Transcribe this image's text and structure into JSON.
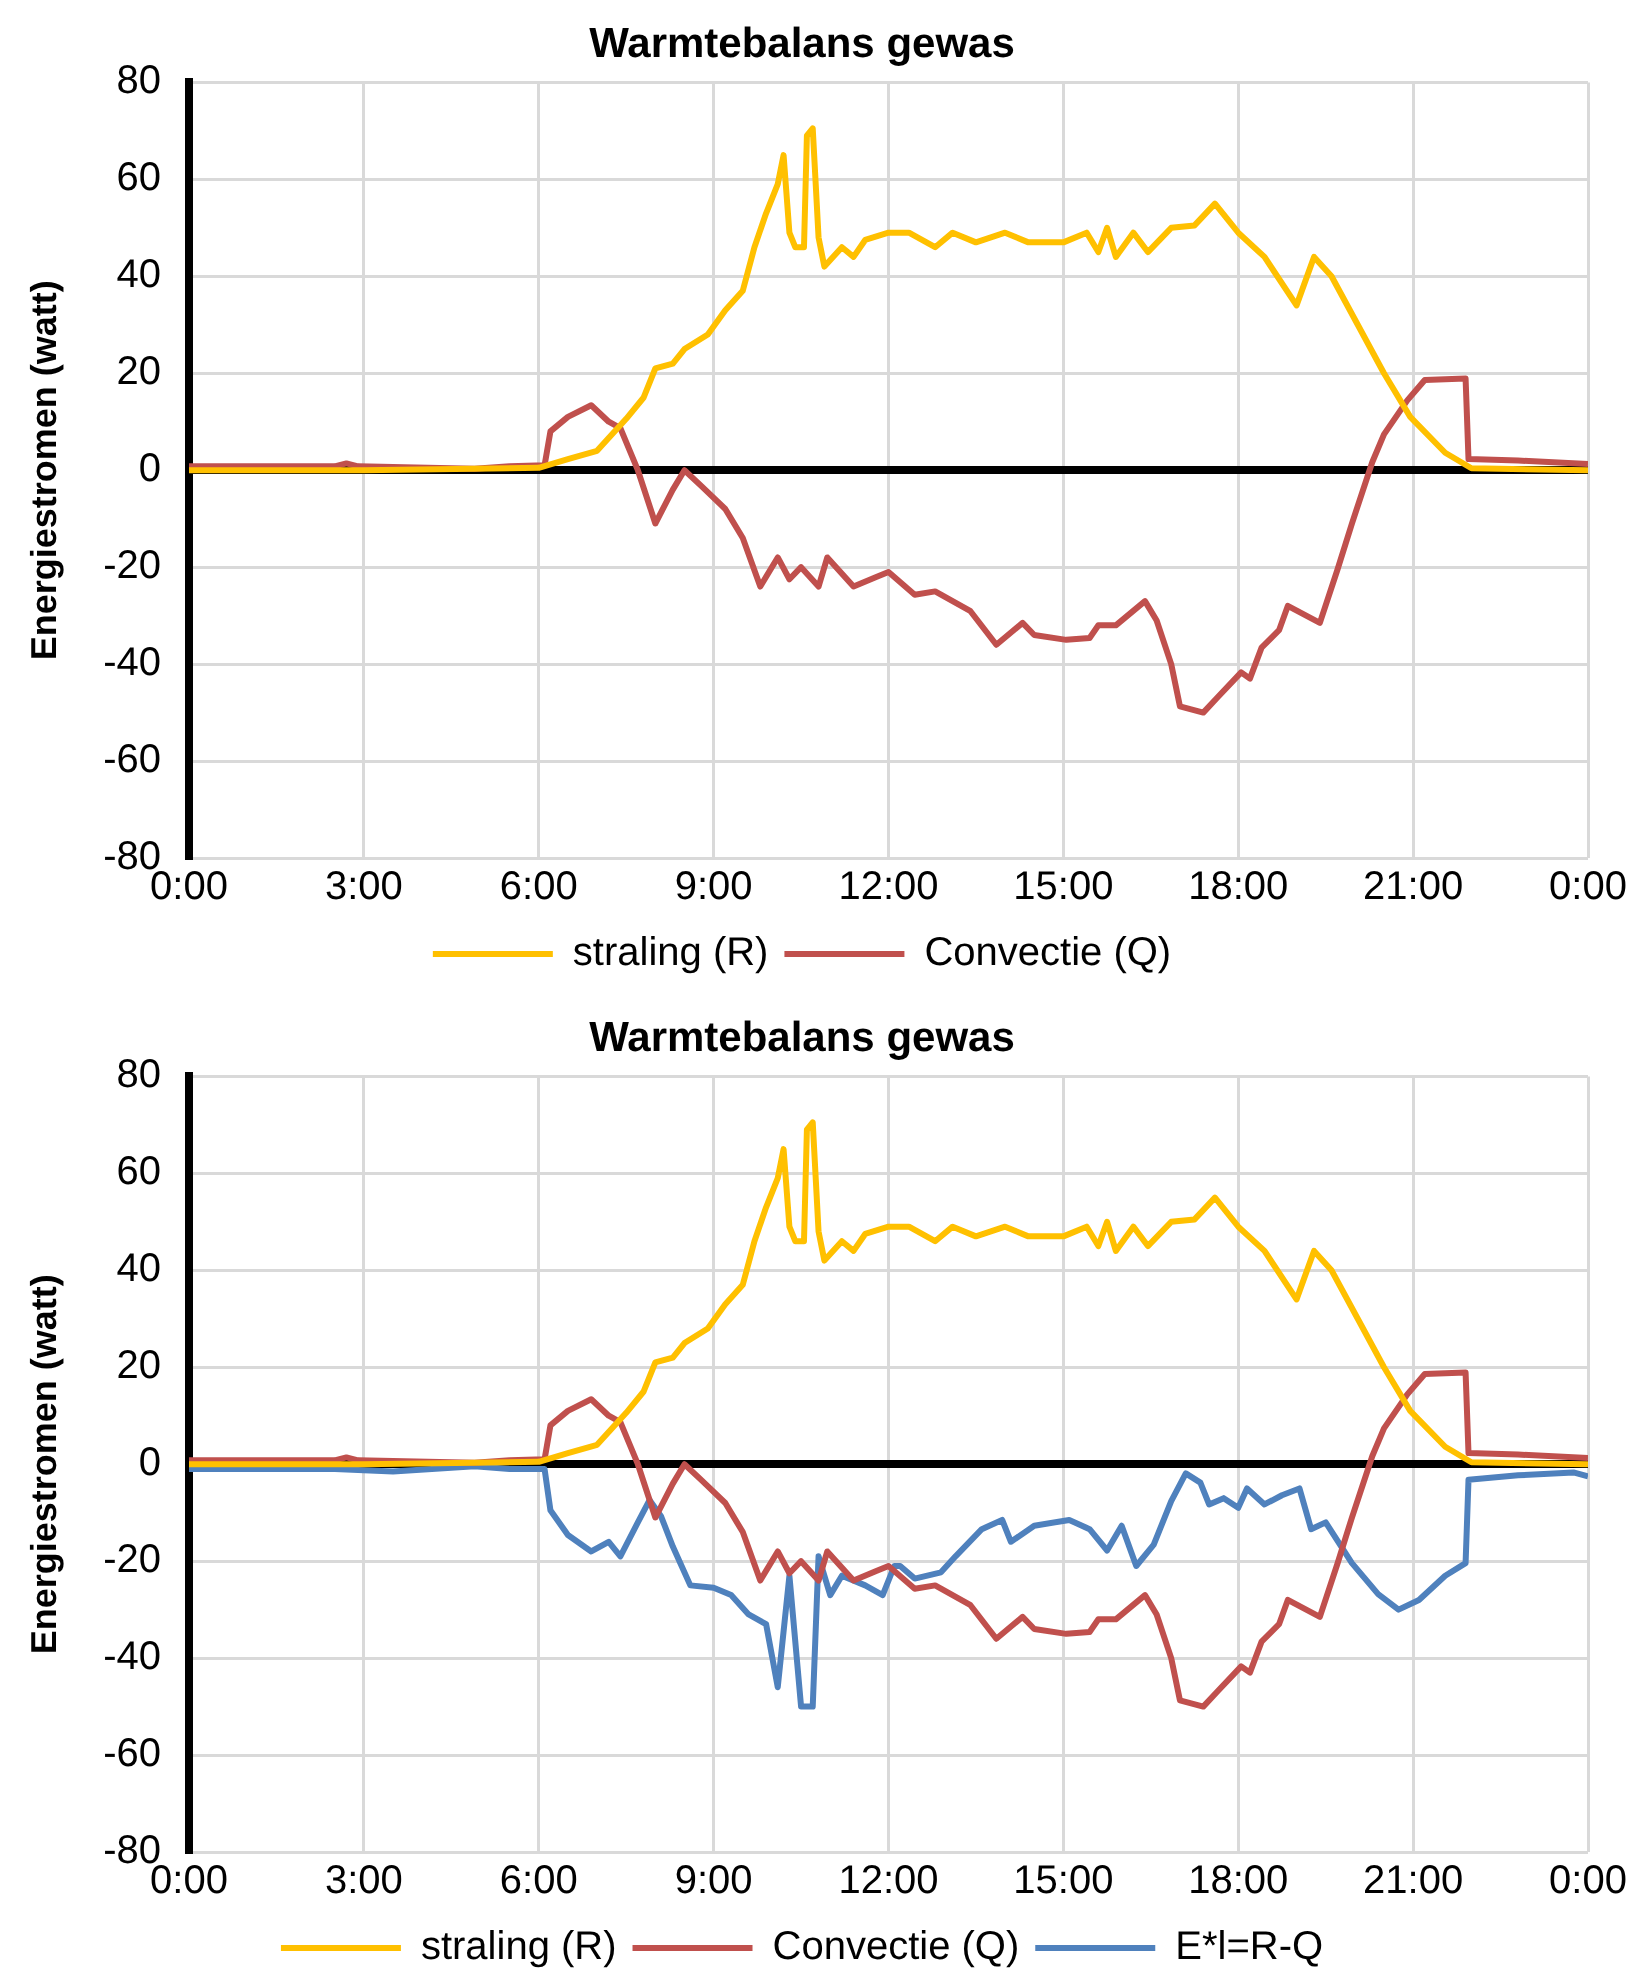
{
  "chart_data": [
    {
      "type": "line",
      "title": "Warmtebalans gewas",
      "ylabel": "Energiestromen (watt)",
      "xlim": [
        0,
        24
      ],
      "xticks": [
        {
          "value": 0,
          "label": "0:00"
        },
        {
          "value": 3,
          "label": "3:00"
        },
        {
          "value": 6,
          "label": "6:00"
        },
        {
          "value": 9,
          "label": "9:00"
        },
        {
          "value": 12,
          "label": "12:00"
        },
        {
          "value": 15,
          "label": "15:00"
        },
        {
          "value": 18,
          "label": "18:00"
        },
        {
          "value": 21,
          "label": "21:00"
        },
        {
          "value": 24,
          "label": "0:00"
        }
      ],
      "ylim": [
        -80,
        80
      ],
      "yticks": [
        -80,
        -60,
        -40,
        -20,
        0,
        20,
        40,
        60,
        80
      ],
      "grid": true,
      "legend": "bottom",
      "series": [
        {
          "name": "straling (R)",
          "color": "#ffc000",
          "x": [
            0,
            3,
            6,
            6.5,
            7,
            7.5,
            7.8,
            8,
            8.3,
            8.5,
            8.9,
            9.2,
            9.5,
            9.7,
            9.9,
            10.1,
            10.2,
            10.3,
            10.4,
            10.55,
            10.6,
            10.7,
            10.8,
            10.9,
            11.2,
            11.4,
            11.6,
            12,
            12.35,
            12.8,
            13.1,
            13.5,
            14,
            14.4,
            15,
            15.4,
            15.6,
            15.75,
            15.9,
            16.2,
            16.45,
            16.85,
            17.25,
            17.6,
            18,
            18.45,
            19,
            19.3,
            19.6,
            20.05,
            20.5,
            20.95,
            21.55,
            22,
            24
          ],
          "values": [
            0,
            0,
            0.5,
            2.3,
            4,
            10.6,
            15,
            21,
            22,
            25,
            28,
            33,
            37,
            46,
            53,
            59,
            65,
            49,
            46,
            46,
            69,
            70.5,
            48,
            42,
            46,
            44,
            47.5,
            49,
            49,
            46,
            49,
            47,
            49,
            47,
            47,
            49,
            45,
            50,
            44,
            49,
            45,
            50,
            50.5,
            55,
            49,
            44,
            34,
            44,
            40,
            30,
            20,
            11,
            3.6,
            0.4,
            0
          ]
        },
        {
          "name": "Convectie (Q)",
          "color": "#c0504d",
          "x": [
            0,
            2.5,
            2.7,
            2.9,
            4.9,
            5.5,
            6.1,
            6.2,
            6.5,
            6.9,
            7.2,
            7.4,
            7.7,
            8,
            8.3,
            8.5,
            8.8,
            9.2,
            9.5,
            9.8,
            10.1,
            10.3,
            10.5,
            10.8,
            10.95,
            11.4,
            11.8,
            12,
            12.45,
            12.8,
            13.4,
            13.85,
            14.3,
            14.5,
            15.05,
            15.45,
            15.6,
            15.9,
            16.4,
            16.6,
            16.85,
            17,
            17.4,
            17.65,
            18.05,
            18.2,
            18.4,
            18.7,
            18.85,
            19.4,
            19.7,
            19.95,
            20.3,
            20.5,
            20.9,
            21.2,
            21.9,
            21.95,
            22.8,
            24
          ],
          "values": [
            0.8,
            0.8,
            1.4,
            0.8,
            0.3,
            0.8,
            1,
            8,
            11,
            13.4,
            10,
            8.7,
            0,
            -11,
            -4,
            0,
            -3.4,
            -8,
            -14,
            -24,
            -18,
            -22.5,
            -20,
            -24,
            -18,
            -24,
            -22,
            -21,
            -25.7,
            -25,
            -29,
            -36,
            -31.5,
            -34,
            -35,
            -34.6,
            -32,
            -32,
            -27,
            -31,
            -40,
            -48.7,
            -50,
            -46.8,
            -41.7,
            -43,
            -36.6,
            -33,
            -28,
            -31.5,
            -20.6,
            -11,
            1.7,
            7.4,
            14.4,
            18.6,
            18.9,
            2.3,
            2,
            1.3
          ]
        }
      ]
    },
    {
      "type": "line",
      "title": "Warmtebalans gewas",
      "ylabel": "Energiestromen (watt)",
      "xlim": [
        0,
        24
      ],
      "xticks": [
        {
          "value": 0,
          "label": "0:00"
        },
        {
          "value": 3,
          "label": "3:00"
        },
        {
          "value": 6,
          "label": "6:00"
        },
        {
          "value": 9,
          "label": "9:00"
        },
        {
          "value": 12,
          "label": "12:00"
        },
        {
          "value": 15,
          "label": "15:00"
        },
        {
          "value": 18,
          "label": "18:00"
        },
        {
          "value": 21,
          "label": "21:00"
        },
        {
          "value": 24,
          "label": "0:00"
        }
      ],
      "ylim": [
        -80,
        80
      ],
      "yticks": [
        -80,
        -60,
        -40,
        -20,
        0,
        20,
        40,
        60,
        80
      ],
      "grid": true,
      "legend": "bottom",
      "series": [
        {
          "name": "straling (R)",
          "color": "#ffc000",
          "x": [
            0,
            3,
            6,
            6.5,
            7,
            7.5,
            7.8,
            8,
            8.3,
            8.5,
            8.9,
            9.2,
            9.5,
            9.7,
            9.9,
            10.1,
            10.2,
            10.3,
            10.4,
            10.55,
            10.6,
            10.7,
            10.8,
            10.9,
            11.2,
            11.4,
            11.6,
            12,
            12.35,
            12.8,
            13.1,
            13.5,
            14,
            14.4,
            15,
            15.4,
            15.6,
            15.75,
            15.9,
            16.2,
            16.45,
            16.85,
            17.25,
            17.6,
            18,
            18.45,
            19,
            19.3,
            19.6,
            20.05,
            20.5,
            20.95,
            21.55,
            22,
            24
          ],
          "values": [
            0,
            0,
            0.5,
            2.3,
            4,
            10.6,
            15,
            21,
            22,
            25,
            28,
            33,
            37,
            46,
            53,
            59,
            65,
            49,
            46,
            46,
            69,
            70.5,
            48,
            42,
            46,
            44,
            47.5,
            49,
            49,
            46,
            49,
            47,
            49,
            47,
            47,
            49,
            45,
            50,
            44,
            49,
            45,
            50,
            50.5,
            55,
            49,
            44,
            34,
            44,
            40,
            30,
            20,
            11,
            3.6,
            0.4,
            0
          ]
        },
        {
          "name": "Convectie (Q)",
          "color": "#c0504d",
          "x": [
            0,
            2.5,
            2.7,
            2.9,
            4.9,
            5.5,
            6.1,
            6.2,
            6.5,
            6.9,
            7.2,
            7.4,
            7.7,
            8,
            8.3,
            8.5,
            8.8,
            9.2,
            9.5,
            9.8,
            10.1,
            10.3,
            10.5,
            10.8,
            10.95,
            11.4,
            11.8,
            12,
            12.45,
            12.8,
            13.4,
            13.85,
            14.3,
            14.5,
            15.05,
            15.45,
            15.6,
            15.9,
            16.4,
            16.6,
            16.85,
            17,
            17.4,
            17.65,
            18.05,
            18.2,
            18.4,
            18.7,
            18.85,
            19.4,
            19.7,
            19.95,
            20.3,
            20.5,
            20.9,
            21.2,
            21.9,
            21.95,
            22.8,
            24
          ],
          "values": [
            0.8,
            0.8,
            1.4,
            0.8,
            0.3,
            0.8,
            1,
            8,
            11,
            13.4,
            10,
            8.7,
            0,
            -11,
            -4,
            0,
            -3.4,
            -8,
            -14,
            -24,
            -18,
            -22.5,
            -20,
            -24,
            -18,
            -24,
            -22,
            -21,
            -25.7,
            -25,
            -29,
            -36,
            -31.5,
            -34,
            -35,
            -34.6,
            -32,
            -32,
            -27,
            -31,
            -40,
            -48.7,
            -50,
            -46.8,
            -41.7,
            -43,
            -36.6,
            -33,
            -28,
            -31.5,
            -20.6,
            -11,
            1.7,
            7.4,
            14.4,
            18.6,
            18.9,
            2.3,
            2,
            1.3
          ]
        },
        {
          "name": "E*l=R-Q",
          "color": "#4f81bd",
          "x": [
            0,
            2.5,
            3.5,
            4.9,
            5.5,
            6.1,
            6.2,
            6.5,
            6.9,
            7.2,
            7.4,
            7.7,
            7.9,
            8.1,
            8.3,
            8.6,
            9,
            9.3,
            9.6,
            9.9,
            10.1,
            10.3,
            10.5,
            10.7,
            10.8,
            11,
            11.2,
            11.6,
            11.9,
            12.1,
            12.2,
            12.45,
            12.9,
            13.15,
            13.6,
            13.95,
            14.1,
            14.5,
            15.1,
            15.45,
            15.75,
            16,
            16.25,
            16.55,
            16.85,
            17.1,
            17.35,
            17.5,
            17.75,
            18,
            18.15,
            18.45,
            18.75,
            19.05,
            19.25,
            19.5,
            19.95,
            20.4,
            20.75,
            21.1,
            21.55,
            21.9,
            21.95,
            22.8,
            23.75,
            24
          ],
          "values": [
            -1,
            -1,
            -1.5,
            -0.4,
            -1,
            -1,
            -9.5,
            -14.6,
            -18,
            -16,
            -19,
            -12,
            -7.4,
            -10.8,
            -17,
            -25,
            -25.5,
            -27,
            -31,
            -33,
            -46,
            -23,
            -50,
            -50,
            -19,
            -27,
            -23,
            -25,
            -27,
            -21,
            -21,
            -23.6,
            -22.3,
            -19,
            -13.4,
            -11.5,
            -16,
            -12.7,
            -11.5,
            -13.4,
            -17.8,
            -12.7,
            -21,
            -16.6,
            -7.6,
            -1.9,
            -3.8,
            -8.3,
            -7,
            -9,
            -5,
            -8.3,
            -6.4,
            -5,
            -13.4,
            -12,
            -20.4,
            -26.8,
            -30,
            -28,
            -23,
            -20.4,
            -3.2,
            -2.3,
            -1.7,
            -2.5
          ]
        }
      ]
    }
  ]
}
